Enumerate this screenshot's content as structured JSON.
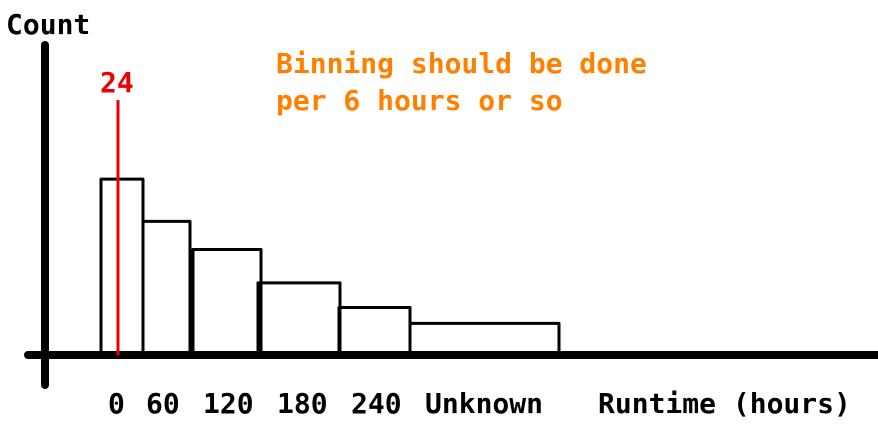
{
  "chart_data": {
    "type": "bar",
    "title": "",
    "ylabel": "Count",
    "xlabel": "Runtime (hours)",
    "categories": [
      "0",
      "60",
      "120",
      "180",
      "240",
      "Unknown"
    ],
    "values": [
      100,
      76,
      60,
      41,
      27,
      18
    ],
    "ylim": [
      0,
      145
    ],
    "grid": false,
    "legend": "none",
    "annotation": {
      "lines": [
        "Binning should be done",
        "per 6 hours or so"
      ],
      "color": "#ff8000"
    },
    "marker": {
      "label": "24",
      "color": "#ee0000"
    },
    "colors": {
      "axis": "#000000",
      "bars": "#000000",
      "annotation": "#ff8000",
      "marker": "#ee0000"
    }
  }
}
